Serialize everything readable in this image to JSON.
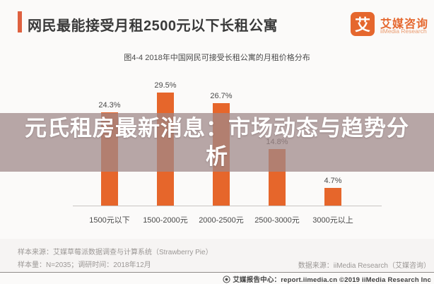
{
  "header": {
    "title": "网民最能接受月租2500元以下长租公寓",
    "logo": {
      "mark": "艾",
      "name_cn": "艾媒咨询",
      "name_en": "iiMedia Research"
    }
  },
  "banner": {
    "lines": [
      "元氏租房最新消息：市场动态与趋势分",
      "析"
    ]
  },
  "chart_data": {
    "type": "bar",
    "title": "图4-4 2018年中国网民可接受长租公寓的月租价格分布",
    "categories": [
      "1500元以下",
      "1500-2000元",
      "2000-2500元",
      "2500-3000元",
      "3000元以上"
    ],
    "values": [
      24.3,
      29.5,
      26.7,
      14.8,
      4.7
    ],
    "value_suffix": "%",
    "bar_color": "#E6662B",
    "xlabel": "",
    "ylabel": "",
    "ylim": [
      0,
      30
    ],
    "grid": false,
    "legend": false
  },
  "footer": {
    "sample_source": "样本来源：艾媒草莓派数据调查与计算系统（Strawberry Pie）",
    "sample_size": "样本量：N=2035；调研时间：2018年12月",
    "data_source": "数据来源：iiMedia Research（艾媒咨询）",
    "report_center": "艾媒报告中心：report.iimedia.cn ©2019 iiMedia Research Inc"
  },
  "colors": {
    "accent_orange": "#E5672E",
    "overlay": "rgba(159,136,136,0.74)"
  }
}
